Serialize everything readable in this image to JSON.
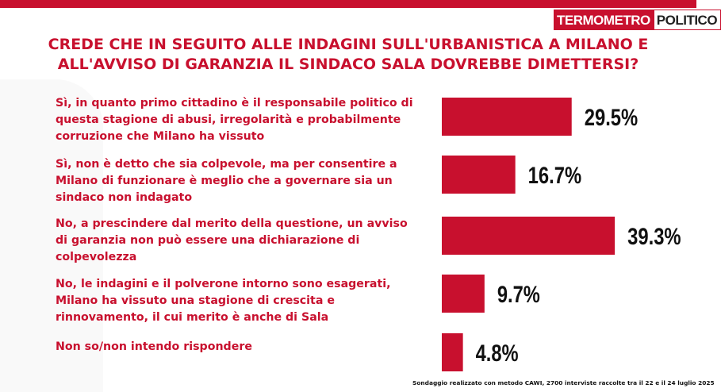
{
  "brand": {
    "part1": "TERMOMETRO",
    "part2": "POLITICO"
  },
  "title": [
    "CREDE CHE IN SEGUITO ALLE INDAGINI SULL'URBANISTICA A MILANO E",
    "ALL'AVVISO DI GARANZIA IL SINDACO SALA DOVREBBE DIMETTERSI?"
  ],
  "footer": "Sondaggio realizzato con metodo CAWI, 2700 interviste raccolte tra il 22 e il 24 luglio 2025",
  "colors": {
    "accent": "#c8102e",
    "bar": "#c8102e",
    "value": "#111111"
  },
  "chart_data": {
    "type": "bar",
    "orientation": "horizontal",
    "categories": [
      [
        "Sì, in quanto primo cittadino è il responsabile politico di",
        "questa stagione di abusi, irregolarità e probabilmente",
        "corruzione che Milano ha vissuto"
      ],
      [
        "Sì, non è detto che sia colpevole, ma per consentire a",
        "Milano di funzionare è meglio che a governare sia un",
        "sindaco non indagato"
      ],
      [
        "No, a prescindere dal merito della questione, un avviso",
        "di garanzia non può essere una dichiarazione di",
        "colpevolezza"
      ],
      [
        "No, le indagini e il polverone intorno sono esagerati,",
        "Milano ha vissuto una stagione di crescita e",
        "rinnovamento, il cui merito è anche di Sala"
      ],
      [
        "Non so/non intendo rispondere"
      ]
    ],
    "values": [
      29.5,
      16.7,
      39.3,
      9.7,
      4.8
    ],
    "value_labels": [
      "29.5%",
      "16.7%",
      "39.3%",
      "9.7%",
      "4.8%"
    ],
    "xlim": [
      0,
      40
    ],
    "grid": false,
    "legend": "none"
  }
}
